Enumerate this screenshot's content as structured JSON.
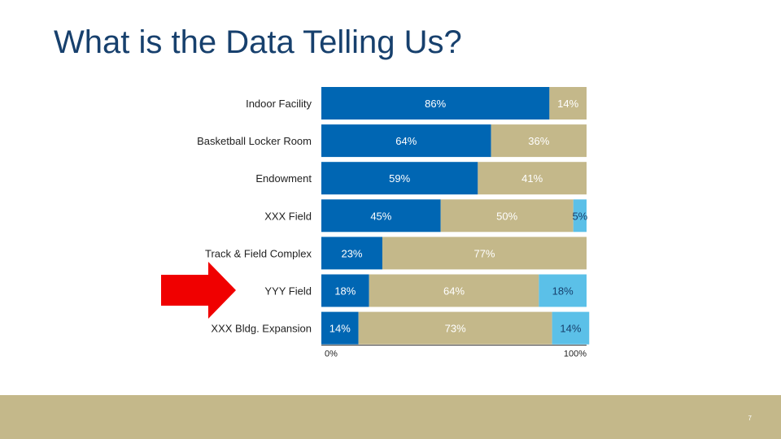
{
  "slide": {
    "title": "What is the Data Telling Us?",
    "page_number": "7"
  },
  "colors": {
    "series1": "#0066B3",
    "series2": "#C4B88A",
    "series3": "#5BC0E8",
    "title": "#17406D",
    "arrow": "#F00000",
    "footer": "#C4B88A"
  },
  "arrow": {
    "points_to": "YYY Field",
    "icon": "right-arrow"
  },
  "chart_data": {
    "type": "bar",
    "orientation": "horizontal",
    "stacking": "percent",
    "categories": [
      "Indoor Facility",
      "Basketball Locker Room",
      "Endowment",
      "XXX Field",
      "Track & Field Complex",
      "YYY Field",
      "XXX Bldg. Expansion"
    ],
    "series": [
      {
        "values": [
          86,
          64,
          59,
          45,
          23,
          18,
          14
        ],
        "labels": [
          "86%",
          "64%",
          "59%",
          "45%",
          "23%",
          "18%",
          "14%"
        ]
      },
      {
        "values": [
          14,
          36,
          41,
          50,
          77,
          64,
          73
        ],
        "labels": [
          "14%",
          "36%",
          "41%",
          "50%",
          "77%",
          "64%",
          "73%"
        ]
      },
      {
        "values": [
          0,
          0,
          0,
          5,
          0,
          18,
          14
        ],
        "labels": [
          "",
          "",
          "",
          "5%",
          "",
          "18%",
          "14%"
        ]
      }
    ],
    "xlim": [
      0,
      100
    ],
    "x_tick_labels": [
      "0%",
      "100%"
    ],
    "grid": false,
    "legend": "none"
  }
}
